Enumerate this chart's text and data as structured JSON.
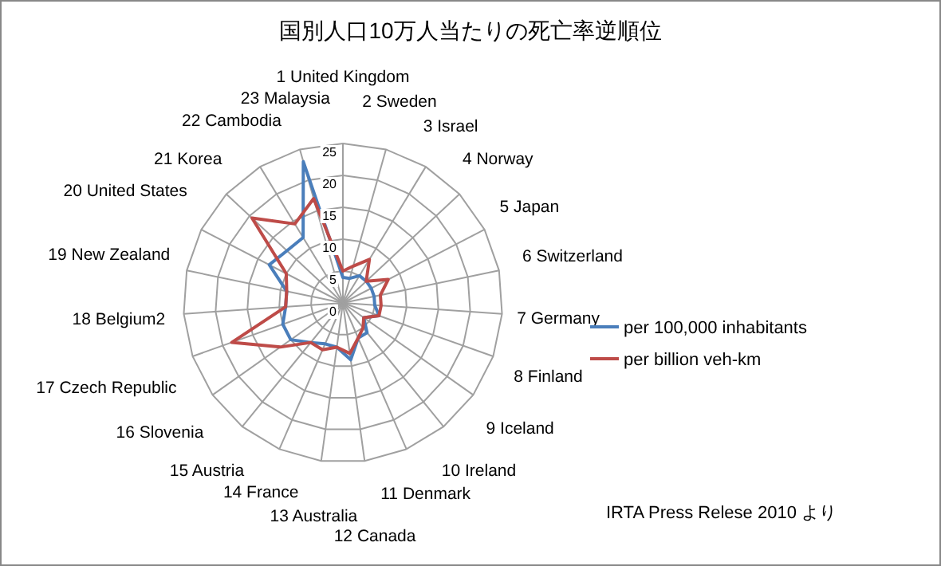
{
  "chart_data": {
    "type": "radar",
    "title": "国別人口10万人当たりの死亡率逆順位",
    "categories": [
      "1 United Kingdom",
      "2 Sweden",
      "3 Israel",
      "4 Norway",
      "5 Japan",
      "6 Switzerland",
      "7 Germany",
      "8 Finland",
      "9 Iceland",
      "10 Ireland",
      "11 Denmark",
      "12 Canada",
      "13 Australia",
      "14 France",
      "15 Austria",
      "16 Slovenia",
      "17 Czech Republic",
      "18 Belgium2",
      "19 New Zealand",
      "20 United States",
      "21 Korea",
      "22 Cambodia",
      "23 Malaysia"
    ],
    "series": [
      {
        "name": "per 100,000 inhabitants",
        "color": "#4a7ebb",
        "values": [
          4,
          4,
          5,
          5,
          5,
          5,
          5,
          6,
          4,
          6,
          6,
          9,
          7,
          7,
          8,
          10,
          10,
          9,
          9,
          13,
          12,
          12,
          23
        ]
      },
      {
        "name": "per billion veh-km",
        "color": "#be4b48",
        "values": [
          5,
          6,
          8,
          5,
          8,
          6,
          6,
          6,
          4,
          5,
          6,
          8,
          7,
          8,
          8,
          12,
          18.5,
          9,
          9,
          10,
          19.5,
          14.5,
          17
        ]
      }
    ],
    "ylim": [
      0,
      25
    ],
    "yticks": [
      0,
      5,
      10,
      15,
      20,
      25
    ],
    "grid": true,
    "legend": "right",
    "annotations": [
      "IRTA Press Relese 2010 より"
    ]
  }
}
